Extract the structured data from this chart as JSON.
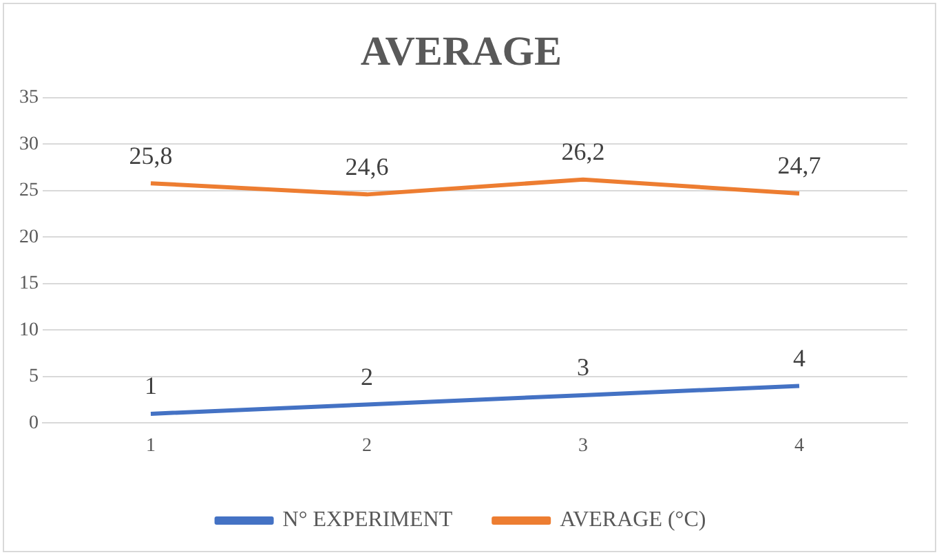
{
  "chart_data": {
    "type": "line",
    "title": "AVERAGE",
    "categories": [
      "1",
      "2",
      "3",
      "4"
    ],
    "series": [
      {
        "name": "N° EXPERIMENT",
        "color": "#4472c4",
        "values": [
          1,
          2,
          3,
          4
        ],
        "value_labels": [
          "1",
          "2",
          "3",
          "4"
        ]
      },
      {
        "name": "AVERAGE (°C)",
        "color": "#ed7d31",
        "values": [
          25.8,
          24.6,
          26.2,
          24.7
        ],
        "value_labels": [
          "25,8",
          "24,6",
          "26,2",
          "24,7"
        ]
      }
    ],
    "ylim": [
      0,
      35
    ],
    "yticks": [
      0,
      5,
      10,
      15,
      20,
      25,
      30,
      35
    ],
    "grid": "y",
    "legend": "bottom",
    "marker": "none",
    "line_style": "solid"
  }
}
